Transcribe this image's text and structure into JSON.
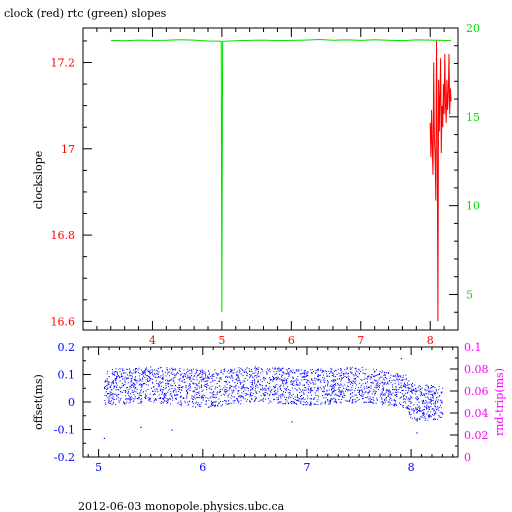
{
  "title": "clock (red) rtc (green) slopes",
  "footer": "2012-06-03  monopole.physics.ubc.ca",
  "colors": {
    "clock": "#ff0000",
    "rtc": "#00dd00",
    "offset": "#0000ff",
    "rtt": "#ff00ff",
    "frame": "#000000"
  },
  "chart_data": [
    {
      "type": "line",
      "title": "clock (red) rtc (green) slopes",
      "ylabel": "clockslope",
      "xlim": [
        3.0,
        8.4
      ],
      "x_ticks": [
        "4",
        "5",
        "6",
        "7",
        "8"
      ],
      "ylim_left": [
        16.58,
        17.28
      ],
      "y_ticks_left": [
        "16.6",
        "16.8",
        "17",
        "17.2"
      ],
      "ylim_right": [
        3.0,
        20.0
      ],
      "y_ticks_right": [
        "5",
        "10",
        "15",
        "20"
      ],
      "grid": false,
      "series": [
        {
          "axis": "right",
          "x": [
            3.4,
            3.6,
            3.8,
            4.0,
            4.2,
            4.4,
            4.6,
            4.8,
            4.99,
            5.0,
            5.01,
            5.2,
            5.4,
            5.6,
            5.8,
            6.0,
            6.2,
            6.4,
            6.6,
            6.8,
            7.0,
            7.2,
            7.4,
            7.6,
            7.8,
            8.0,
            8.2,
            8.3
          ],
          "y": [
            19.3,
            19.28,
            19.32,
            19.3,
            19.31,
            19.34,
            19.32,
            19.27,
            19.25,
            4.0,
            19.25,
            19.28,
            19.3,
            19.32,
            19.29,
            19.3,
            19.32,
            19.35,
            19.31,
            19.33,
            19.3,
            19.34,
            19.31,
            19.29,
            19.33,
            19.32,
            19.3,
            19.28
          ]
        },
        {
          "axis": "left",
          "x": [
            8.0,
            8.01,
            8.02,
            8.03,
            8.04,
            8.05,
            8.06,
            8.07,
            8.08,
            8.09,
            8.1,
            8.11,
            8.12,
            8.13,
            8.14,
            8.15,
            8.16,
            8.17,
            8.18,
            8.19,
            8.2,
            8.21,
            8.22,
            8.23,
            8.24,
            8.25,
            8.26,
            8.27,
            8.28,
            8.29,
            8.3
          ],
          "y": [
            17.06,
            16.98,
            17.09,
            17.0,
            16.94,
            17.2,
            17.02,
            16.99,
            16.88,
            17.25,
            17.03,
            16.6,
            17.16,
            17.04,
            17.12,
            17.21,
            16.99,
            17.1,
            17.05,
            17.15,
            17.08,
            17.22,
            17.1,
            17.06,
            17.16,
            17.09,
            17.13,
            17.22,
            17.08,
            17.14,
            17.11
          ]
        }
      ]
    },
    {
      "type": "scatter",
      "ylabel_left": "offset(ms)",
      "ylabel_right": "rnd-trip(ms)",
      "xlim": [
        4.85,
        8.45
      ],
      "x_ticks": [
        "5",
        "6",
        "7",
        "8"
      ],
      "ylim_left": [
        -0.2,
        0.2
      ],
      "y_ticks_left": [
        "-0.2",
        "-0.1",
        "0",
        "0.1",
        "0.2"
      ],
      "ylim_right": [
        0.0,
        0.1
      ],
      "y_ticks_right": [
        "0",
        "0.02",
        "0.04",
        "0.06",
        "0.08",
        "0.1"
      ],
      "series": [
        {
          "axis": "left",
          "x_range": [
            5.05,
            8.3
          ],
          "band": [
            [
              5.05,
              -0.01,
              0.12
            ],
            [
              5.5,
              0.0,
              0.13
            ],
            [
              6.0,
              -0.02,
              0.12
            ],
            [
              6.5,
              0.0,
              0.13
            ],
            [
              7.0,
              -0.01,
              0.12
            ],
            [
              7.5,
              0.0,
              0.13
            ],
            [
              7.95,
              -0.02,
              0.1
            ],
            [
              8.0,
              -0.07,
              0.07
            ],
            [
              8.3,
              -0.06,
              0.06
            ]
          ],
          "outliers": [
            [
              5.05,
              -0.13
            ],
            [
              5.4,
              -0.09
            ],
            [
              5.7,
              -0.1
            ],
            [
              6.85,
              -0.07
            ],
            [
              7.9,
              0.16
            ],
            [
              8.05,
              -0.11
            ]
          ]
        }
      ]
    }
  ]
}
